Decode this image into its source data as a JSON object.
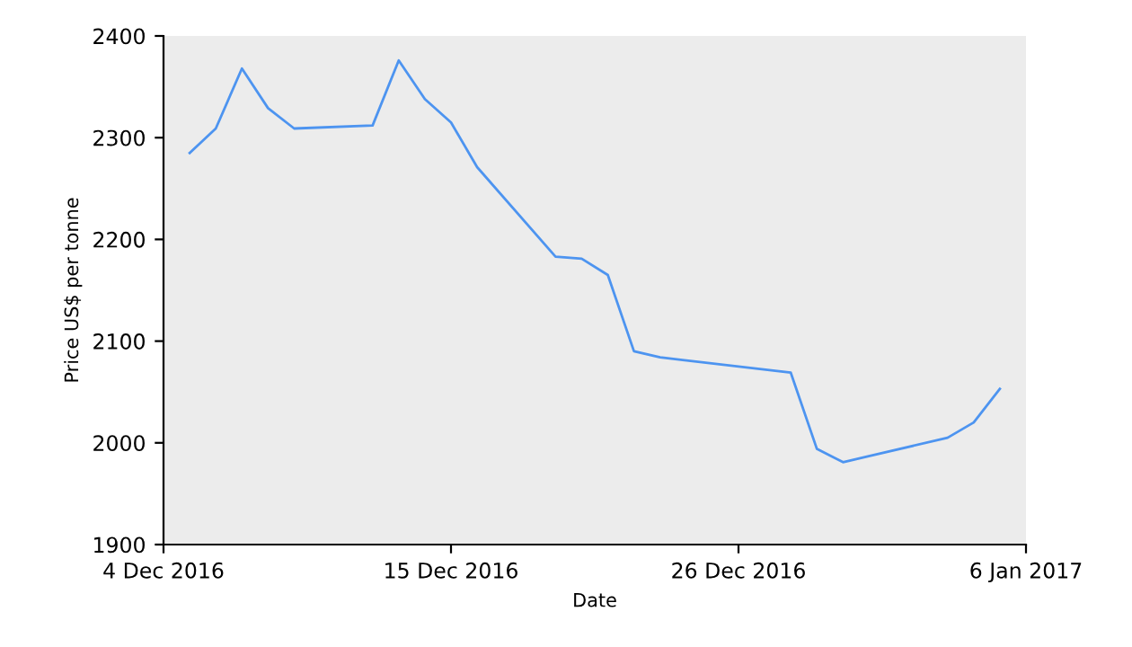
{
  "chart_data": {
    "type": "line",
    "xlabel": "Date",
    "ylabel": "Price US$ per tonne",
    "x": [
      "2016-12-05",
      "2016-12-06",
      "2016-12-07",
      "2016-12-08",
      "2016-12-09",
      "2016-12-12",
      "2016-12-13",
      "2016-12-14",
      "2016-12-15",
      "2016-12-16",
      "2016-12-19",
      "2016-12-20",
      "2016-12-21",
      "2016-12-22",
      "2016-12-23",
      "2016-12-28",
      "2016-12-29",
      "2016-12-30",
      "2017-01-03",
      "2017-01-04",
      "2017-01-05"
    ],
    "series": [
      {
        "color": "#4d94f0",
        "values": [
          2285,
          2309,
          2368,
          2329,
          2309,
          2312,
          2376,
          2338,
          2315,
          2271,
          2183,
          2181,
          2165,
          2090,
          2084,
          2069,
          1994,
          1981,
          2005,
          2020,
          2053
        ]
      }
    ],
    "xlim": [
      "2016-12-04",
      "2017-01-06"
    ],
    "xticks": [
      {
        "value": "2016-12-04",
        "label": "4 Dec 2016"
      },
      {
        "value": "2016-12-15",
        "label": "15 Dec 2016"
      },
      {
        "value": "2016-12-26",
        "label": "26 Dec 2016"
      },
      {
        "value": "2017-01-06",
        "label": "6 Jan 2017"
      }
    ],
    "ylim": [
      1900,
      2400
    ],
    "yticks": [
      1900,
      2000,
      2100,
      2200,
      2300,
      2400
    ],
    "grid": false,
    "legend": false,
    "marker": "none",
    "line_style": "solid"
  }
}
